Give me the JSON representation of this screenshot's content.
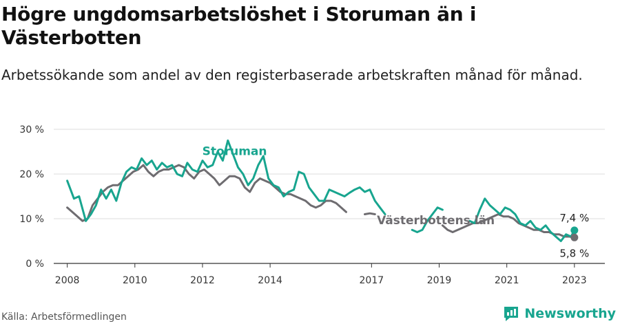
{
  "header": {
    "title": "Högre ungdomsarbetslöshet i Storuman än i Västerbotten",
    "subtitle": "Arbetssökande som andel av den registerbaserade arbetskraften månad för månad."
  },
  "footer": {
    "source": "Källa: Arbetsförmedlingen",
    "brand": "Newsworthy"
  },
  "colors": {
    "storuman": "#18a58f",
    "lan": "#6e6c70",
    "grid": "#dcdcdc",
    "axis": "#333333"
  },
  "chart_data": {
    "type": "line",
    "title": "Högre ungdomsarbetslöshet i Storuman än i Västerbotten",
    "xlabel": "",
    "ylabel": "",
    "xlim": [
      2008,
      2023.9
    ],
    "ylim": [
      0,
      30
    ],
    "yticks": [
      0,
      10,
      20,
      30
    ],
    "ytick_labels": [
      "0 %",
      "10 %",
      "20 %",
      "30 %"
    ],
    "xticks": [
      2008,
      2010,
      2012,
      2014,
      2017,
      2019,
      2021,
      2023
    ],
    "xtick_labels": [
      "2008",
      "2010",
      "2012",
      "2014",
      "2017",
      "2019",
      "2021",
      "2023"
    ],
    "grid": true,
    "series": [
      {
        "name": "Storuman",
        "end_label": "7,4 %",
        "segments": [
          {
            "x": [
              2008.0,
              2008.2,
              2008.35,
              2008.55,
              2008.7,
              2008.85,
              2009.0,
              2009.15,
              2009.3,
              2009.45,
              2009.6,
              2009.75,
              2009.9,
              2010.05,
              2010.2,
              2010.35,
              2010.5,
              2010.65,
              2010.8,
              2010.95,
              2011.1,
              2011.25,
              2011.4,
              2011.55,
              2011.7,
              2011.85,
              2012.0,
              2012.15,
              2012.3,
              2012.45,
              2012.6,
              2012.75,
              2012.9,
              2013.05,
              2013.2,
              2013.35,
              2013.5,
              2013.65,
              2013.8,
              2013.95,
              2014.1,
              2014.25,
              2014.4,
              2014.55,
              2014.7,
              2014.85,
              2015.0,
              2015.15,
              2015.3,
              2015.45,
              2015.6,
              2015.75,
              2015.9,
              2016.05,
              2016.2,
              2016.35,
              2016.5,
              2016.65,
              2016.8,
              2016.95,
              2017.1,
              2017.25,
              2017.4
            ],
            "y": [
              18.5,
              14.5,
              15.0,
              9.5,
              11.0,
              13.0,
              16.5,
              14.5,
              16.5,
              14.0,
              18.0,
              20.5,
              21.5,
              21.0,
              23.5,
              22.0,
              23.0,
              21.0,
              22.5,
              21.5,
              22.0,
              20.0,
              19.5,
              22.5,
              21.0,
              20.5,
              23.0,
              21.5,
              22.0,
              25.0,
              23.0,
              27.5,
              24.5,
              21.5,
              20.0,
              17.5,
              19.0,
              22.0,
              24.0,
              19.0,
              17.5,
              17.0,
              15.0,
              16.0,
              16.5,
              20.5,
              20.0,
              17.0,
              15.5,
              14.0,
              14.0,
              16.5,
              16.0,
              15.5,
              15.0,
              15.8,
              16.5,
              17.0,
              16.0,
              16.5,
              14.0,
              12.5,
              11.0
            ]
          },
          {
            "x": [
              2018.2,
              2018.35,
              2018.5,
              2018.65,
              2018.8,
              2018.95,
              2019.1
            ],
            "y": [
              7.5,
              7.0,
              7.5,
              9.5,
              11.0,
              12.5,
              12.0
            ]
          },
          {
            "x": [
              2019.9,
              2020.05,
              2020.2,
              2020.35,
              2020.5,
              2020.65,
              2020.8,
              2020.95,
              2021.1,
              2021.25,
              2021.4,
              2021.55,
              2021.7,
              2021.85,
              2022.0,
              2022.15,
              2022.3,
              2022.45,
              2022.6,
              2022.75,
              2022.9,
              2023.0
            ],
            "y": [
              9.5,
              9.0,
              12.0,
              14.5,
              13.0,
              12.0,
              11.0,
              12.5,
              12.0,
              11.0,
              9.0,
              8.5,
              9.5,
              8.0,
              7.5,
              8.5,
              7.0,
              6.0,
              5.0,
              6.5,
              6.0,
              7.4
            ]
          }
        ]
      },
      {
        "name": "Västerbottens län",
        "end_label": "5,8 %",
        "segments": [
          {
            "x": [
              2008.0,
              2008.15,
              2008.3,
              2008.45,
              2008.6,
              2008.75,
              2008.9,
              2009.05,
              2009.2,
              2009.35,
              2009.5,
              2009.65,
              2009.8,
              2009.95,
              2010.1,
              2010.25,
              2010.4,
              2010.55,
              2010.7,
              2010.85,
              2011.0,
              2011.15,
              2011.3,
              2011.45,
              2011.6,
              2011.75,
              2011.9,
              2012.05,
              2012.2,
              2012.35,
              2012.5,
              2012.65,
              2012.8,
              2012.95,
              2013.1,
              2013.25,
              2013.4,
              2013.55,
              2013.7,
              2013.85,
              2014.0,
              2014.15,
              2014.3,
              2014.45,
              2014.6,
              2014.75,
              2014.9,
              2015.05,
              2015.2,
              2015.35,
              2015.5,
              2015.65,
              2015.8,
              2015.95,
              2016.1,
              2016.25
            ],
            "y": [
              12.5,
              11.5,
              10.5,
              9.5,
              10.0,
              13.0,
              14.5,
              16.0,
              17.0,
              17.5,
              17.5,
              18.5,
              19.5,
              20.5,
              21.0,
              22.0,
              20.5,
              19.5,
              20.5,
              21.0,
              21.0,
              21.5,
              22.0,
              21.5,
              20.0,
              19.0,
              20.5,
              21.0,
              20.0,
              19.0,
              17.5,
              18.5,
              19.5,
              19.5,
              19.0,
              17.0,
              16.0,
              18.0,
              19.0,
              18.5,
              18.0,
              17.0,
              16.0,
              15.5,
              15.5,
              15.0,
              14.5,
              14.0,
              13.0,
              12.5,
              13.0,
              14.0,
              14.0,
              13.5,
              12.5,
              11.5
            ]
          },
          {
            "x": [
              2016.8,
              2016.95,
              2017.1
            ],
            "y": [
              11.0,
              11.2,
              11.0
            ]
          },
          {
            "x": [
              2019.1,
              2019.25,
              2019.4,
              2019.55,
              2019.7,
              2019.85,
              2020.0,
              2020.15,
              2020.3,
              2020.45,
              2020.6,
              2020.75,
              2020.9,
              2021.05,
              2021.2,
              2021.35,
              2021.5,
              2021.65,
              2021.8,
              2021.95,
              2022.1,
              2022.25,
              2022.4,
              2022.55,
              2022.7,
              2022.85,
              2023.0
            ],
            "y": [
              8.5,
              7.5,
              7.0,
              7.5,
              8.0,
              8.5,
              9.0,
              9.0,
              9.5,
              10.0,
              10.5,
              11.0,
              10.5,
              10.5,
              10.0,
              9.0,
              8.5,
              8.0,
              7.5,
              7.5,
              7.0,
              7.0,
              6.5,
              6.5,
              6.0,
              6.0,
              5.8
            ]
          }
        ]
      }
    ]
  }
}
